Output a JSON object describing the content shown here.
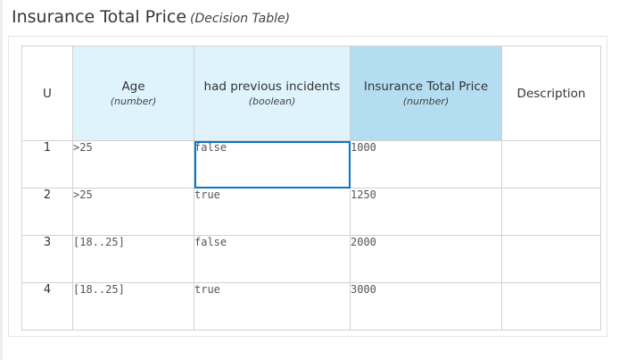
{
  "header": {
    "title": "Insurance Total Price",
    "kind": "(Decision Table)"
  },
  "table": {
    "hit_policy": "U",
    "columns": [
      {
        "label": "Age",
        "type": "(number)",
        "kind": "input"
      },
      {
        "label": "had previous incidents",
        "type": "(boolean)",
        "kind": "input"
      },
      {
        "label": "Insurance Total Price",
        "type": "(number)",
        "kind": "output"
      },
      {
        "label": "Description",
        "type": "",
        "kind": "annotation"
      }
    ],
    "rows": [
      {
        "number": "1",
        "cells": [
          ">25",
          "false",
          "1000",
          ""
        ]
      },
      {
        "number": "2",
        "cells": [
          ">25",
          "true",
          "1250",
          ""
        ]
      },
      {
        "number": "3",
        "cells": [
          "[18..25]",
          "false",
          "2000",
          ""
        ]
      },
      {
        "number": "4",
        "cells": [
          "[18..25]",
          "true",
          "3000",
          ""
        ]
      }
    ],
    "selected_cell": {
      "row": 0,
      "column": 1
    }
  },
  "colors": {
    "input_header": "#def3fc",
    "output_header": "#b5ddf2",
    "selection": "#0a76c4"
  }
}
